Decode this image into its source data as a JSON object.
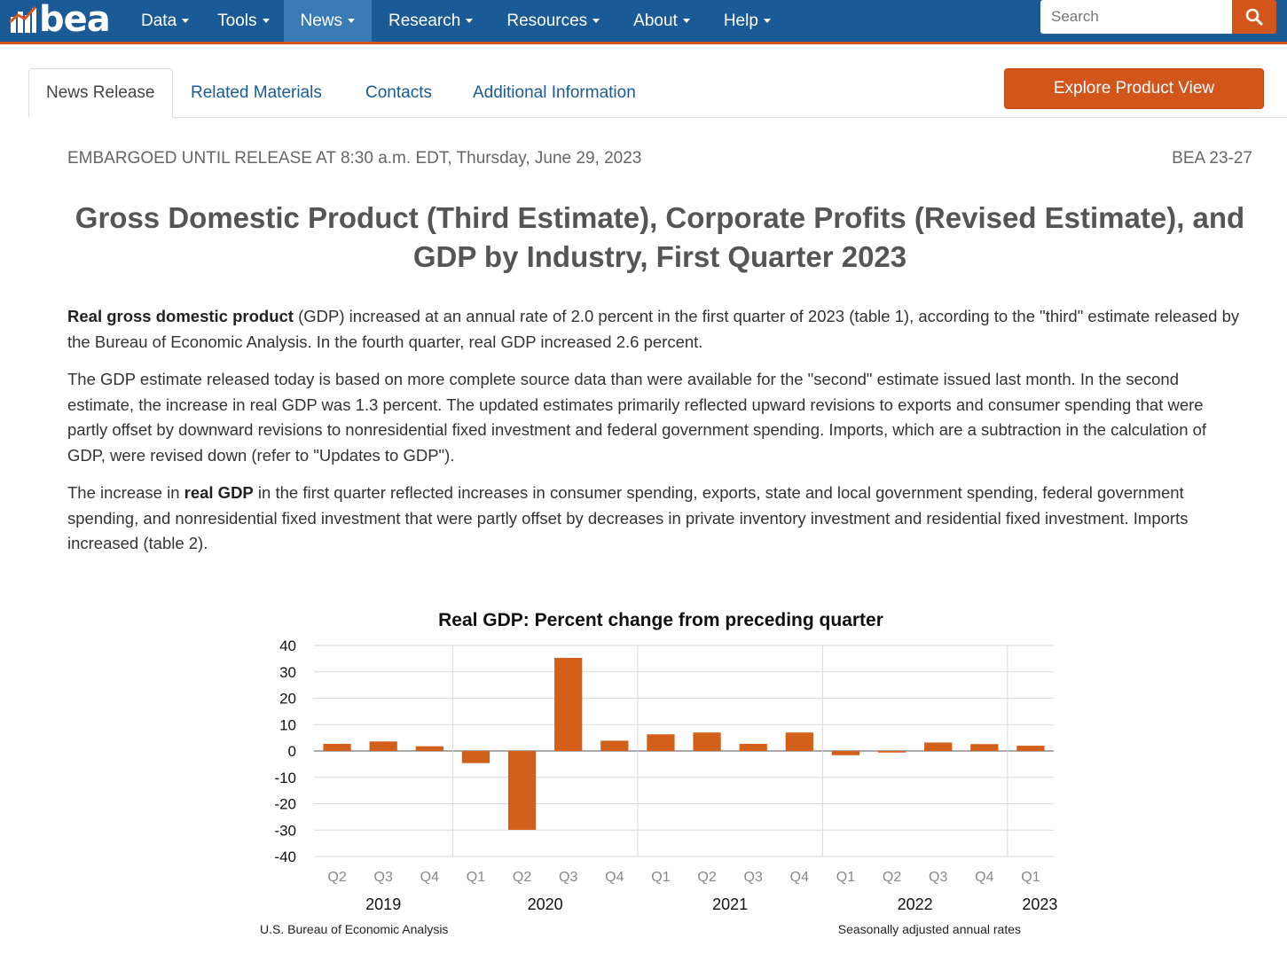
{
  "nav": {
    "logo_text": "bea",
    "items": [
      {
        "label": "Data",
        "active": false
      },
      {
        "label": "Tools",
        "active": false
      },
      {
        "label": "News",
        "active": true
      },
      {
        "label": "Research",
        "active": false
      },
      {
        "label": "Resources",
        "active": false
      },
      {
        "label": "About",
        "active": false
      },
      {
        "label": "Help",
        "active": false
      }
    ],
    "search_placeholder": "Search",
    "colors": {
      "bar": "#1a5a96",
      "accent": "#d2561c",
      "active": "#3a7ab5"
    }
  },
  "tabs": [
    {
      "label": "News Release",
      "active": true
    },
    {
      "label": "Related Materials",
      "active": false
    },
    {
      "label": "Contacts",
      "active": false
    },
    {
      "label": "Additional Information",
      "active": false
    }
  ],
  "explore_button": "Explore Product View",
  "release": {
    "embargo": "EMBARGOED UNTIL RELEASE AT 8:30 a.m. EDT, Thursday, June 29, 2023",
    "number": "BEA 23-27",
    "title": "Gross Domestic Product (Third Estimate), Corporate Profits (Revised Estimate), and GDP by Industry, First Quarter 2023",
    "p1_bold": "Real gross domestic product",
    "p1_rest": " (GDP) increased at an annual rate of 2.0 percent in the first quarter of 2023 (table 1), according to the \"third\" estimate released by the Bureau of Economic Analysis. In the fourth quarter, real GDP increased 2.6 percent.",
    "p2": "The GDP estimate released today is based on more complete source data than were available for the \"second\" estimate issued last month. In the second estimate, the increase in real GDP was 1.3 percent. The updated estimates primarily reflected upward revisions to exports and consumer spending that were partly offset by downward revisions to nonresidential fixed investment and federal government spending. Imports, which are a subtraction in the calculation of GDP, were revised down (refer to \"Updates to GDP\").",
    "p3_start": "The increase in ",
    "p3_bold": "real GDP",
    "p3_rest": " in the first quarter reflected increases in consumer spending, exports, state and local government spending, federal government spending, and nonresidential fixed investment that were partly offset by decreases in private inventory investment and residential fixed investment. Imports increased (table 2)."
  },
  "chart_data": {
    "type": "bar",
    "title": "Real GDP:  Percent change from preceding quarter",
    "categories": [
      "Q2",
      "Q3",
      "Q4",
      "Q1",
      "Q2",
      "Q3",
      "Q4",
      "Q1",
      "Q2",
      "Q3",
      "Q4",
      "Q1",
      "Q2",
      "Q3",
      "Q4",
      "Q1"
    ],
    "years": [
      {
        "label": "2019",
        "start": 0,
        "end": 2
      },
      {
        "label": "2020",
        "start": 3,
        "end": 6
      },
      {
        "label": "2021",
        "start": 7,
        "end": 10
      },
      {
        "label": "2022",
        "start": 11,
        "end": 14
      },
      {
        "label": "2023",
        "start": 15,
        "end": 15
      }
    ],
    "values": [
      2.7,
      3.6,
      1.8,
      -4.6,
      -29.9,
      35.3,
      3.9,
      6.3,
      7.0,
      2.7,
      7.0,
      -1.6,
      -0.6,
      3.2,
      2.6,
      2.0
    ],
    "ylim": [
      -40,
      40
    ],
    "yticks": [
      40,
      30,
      20,
      10,
      0,
      -10,
      -20,
      -30,
      -40
    ],
    "bar_color": "#d2601a",
    "footnote_left": "U.S. Bureau of Economic Analysis",
    "footnote_right": "Seasonally adjusted annual rates"
  }
}
